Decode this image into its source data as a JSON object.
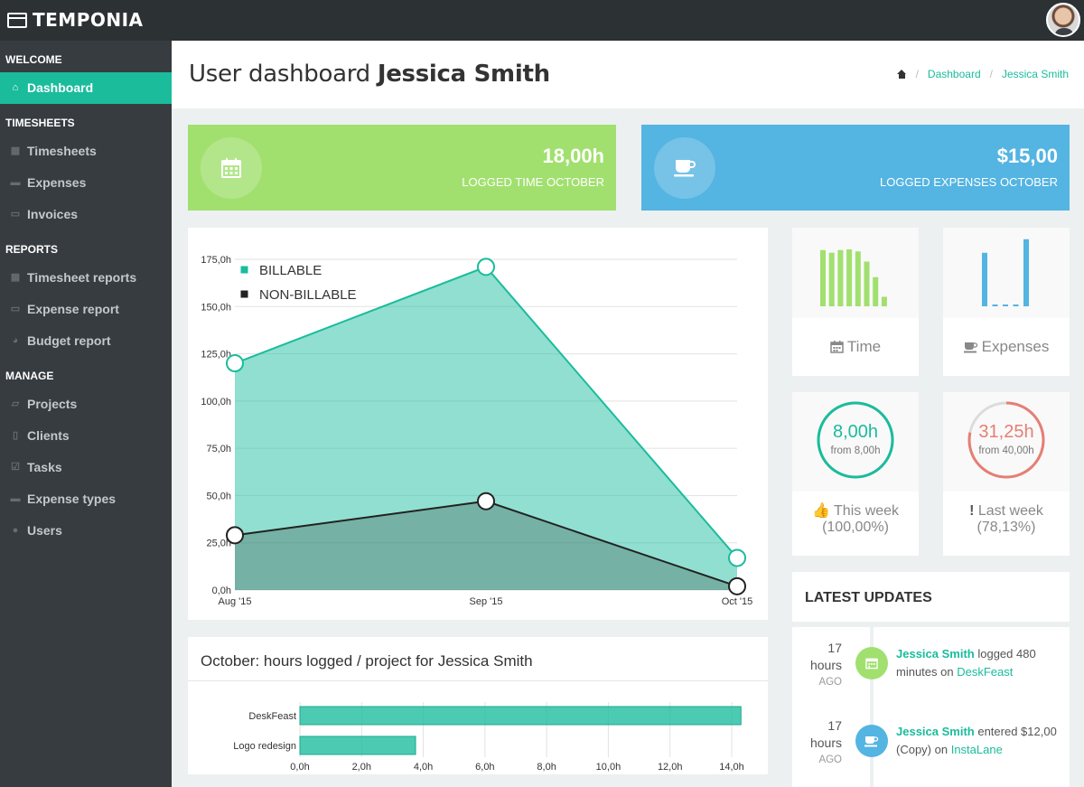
{
  "app": {
    "brand": "TEMPONIA"
  },
  "sidebar": {
    "sections": [
      {
        "title": "WELCOME",
        "items": [
          {
            "label": "Dashboard",
            "icon": "home-icon",
            "active": true
          }
        ]
      },
      {
        "title": "TIMESHEETS",
        "items": [
          {
            "label": "Timesheets",
            "icon": "calendar-icon"
          },
          {
            "label": "Expenses",
            "icon": "coffee-icon"
          },
          {
            "label": "Invoices",
            "icon": "credit-card-icon"
          }
        ]
      },
      {
        "title": "REPORTS",
        "items": [
          {
            "label": "Timesheet reports",
            "icon": "calendar-icon"
          },
          {
            "label": "Expense report",
            "icon": "credit-card-icon"
          },
          {
            "label": "Budget report",
            "icon": "pie-chart-icon"
          }
        ]
      },
      {
        "title": "MANAGE",
        "items": [
          {
            "label": "Projects",
            "icon": "folder-icon"
          },
          {
            "label": "Clients",
            "icon": "building-icon"
          },
          {
            "label": "Tasks",
            "icon": "check-square-icon"
          },
          {
            "label": "Expense types",
            "icon": "coffee-icon"
          },
          {
            "label": "Users",
            "icon": "users-icon"
          }
        ]
      }
    ]
  },
  "header": {
    "title_prefix": "User dashboard",
    "title_name": "Jessica Smith",
    "breadcrumb": {
      "dashboard": "Dashboard",
      "current": "Jessica Smith"
    }
  },
  "stats": {
    "time": {
      "value": "18,00h",
      "label": "LOGGED TIME OCTOBER",
      "color": "#a1e06e"
    },
    "expenses": {
      "value": "$15,00",
      "label": "LOGGED EXPENSES OCTOBER",
      "color": "#54b4e2"
    }
  },
  "mini": {
    "time_label": "Time",
    "expenses_label": "Expenses",
    "time_bars": [
      0.83,
      0.79,
      0.83,
      0.84,
      0.81,
      0.66,
      0.43,
      0.14
    ],
    "expense_bars": [
      0.79,
      0,
      0,
      0,
      0.99
    ]
  },
  "week": {
    "this": {
      "value": "8,00h",
      "sub": "from 8,00h",
      "caption": "This week",
      "pct": "(100,00%)",
      "ratio": 1.0,
      "color": "#1abc9c"
    },
    "last": {
      "value": "31,25h",
      "sub": "from 40,00h",
      "caption": "Last week",
      "pct": "(78,13%)",
      "ratio": 0.78125,
      "color": "#e67e73"
    }
  },
  "updates": {
    "title": "LATEST UPDATES",
    "items": [
      {
        "num": "17",
        "unit": "hours",
        "ago": "AGO",
        "user": "Jessica Smith",
        "action": "logged 480 minutes on",
        "project": "DeskFeast",
        "icon": "calendar-icon",
        "color": "#a1e06e"
      },
      {
        "num": "17",
        "unit": "hours",
        "ago": "AGO",
        "user": "Jessica Smith",
        "action": "entered $12,00 (Copy) on",
        "project": "InstaLane",
        "icon": "coffee-icon",
        "color": "#54b4e2"
      }
    ]
  },
  "bar_title": "October: hours logged / project for Jessica Smith",
  "chart_data": [
    {
      "type": "area",
      "categories": [
        "Aug '15",
        "Sep '15",
        "Oct '15"
      ],
      "series": [
        {
          "name": "BILLABLE",
          "values": [
            120,
            171,
            17
          ],
          "color": "#1abc9c"
        },
        {
          "name": "NON-BILLABLE",
          "values": [
            29,
            47,
            2
          ],
          "color": "#222222"
        }
      ],
      "yticks": [
        "0,0h",
        "25,0h",
        "50,0h",
        "75,0h",
        "100,0h",
        "125,0h",
        "150,0h",
        "175,0h"
      ],
      "ylim": [
        0,
        175
      ],
      "legend": "top-left"
    },
    {
      "type": "bar",
      "orientation": "horizontal",
      "title": "October: hours logged / project for Jessica Smith",
      "categories": [
        "DeskFeast",
        "Logo redesign"
      ],
      "values": [
        14.3,
        3.75
      ],
      "xticks": [
        "0,0h",
        "2,0h",
        "4,0h",
        "6,0h",
        "8,0h",
        "10,0h",
        "12,0h",
        "14,0h"
      ],
      "xlim": [
        0,
        14
      ],
      "color": "#1abc9c"
    }
  ]
}
